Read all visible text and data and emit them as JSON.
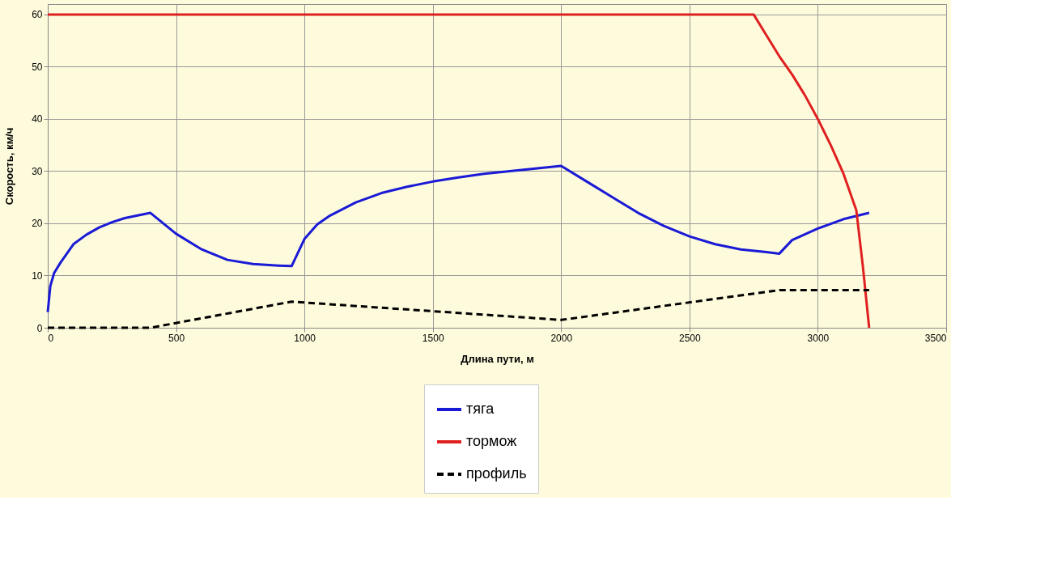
{
  "chart_data": {
    "type": "line",
    "xlabel": "Длина пути, м",
    "ylabel": "Скорость, км/ч",
    "xlim": [
      0,
      3500
    ],
    "xticks": [
      0,
      500,
      1000,
      1500,
      2000,
      2500,
      3000,
      3500
    ],
    "ylim": [
      0,
      62
    ],
    "yticks": [
      0,
      10,
      20,
      30,
      40,
      50,
      60
    ],
    "grid": true,
    "legend": "bottom",
    "series": [
      {
        "name": "тяга",
        "color": "#1a1ad6",
        "line_style": "solid",
        "x": [
          0,
          10,
          25,
          50,
          100,
          150,
          200,
          250,
          300,
          350,
          400,
          500,
          600,
          700,
          800,
          900,
          950,
          1000,
          1050,
          1100,
          1200,
          1300,
          1400,
          1500,
          1600,
          1700,
          1800,
          1900,
          2000,
          2100,
          2200,
          2300,
          2400,
          2500,
          2600,
          2700,
          2800,
          2850,
          2900,
          3000,
          3100,
          3200
        ],
        "values": [
          3,
          8,
          10.5,
          12.5,
          16,
          17.8,
          19.2,
          20.2,
          21,
          21.5,
          22,
          18,
          15,
          13,
          12.2,
          11.9,
          11.8,
          17,
          19.8,
          21.5,
          24,
          25.8,
          27,
          28,
          28.8,
          29.5,
          30,
          30.5,
          31,
          28,
          25,
          22,
          19.5,
          17.5,
          16,
          15,
          14.5,
          14.2,
          16.8,
          19,
          20.8,
          22
        ]
      },
      {
        "name": "тормож",
        "color": "#e02020",
        "line_style": "solid",
        "x": [
          0,
          2750,
          2800,
          2850,
          2900,
          2950,
          3000,
          3050,
          3100,
          3150,
          3175,
          3200
        ],
        "values": [
          60,
          60,
          56,
          52,
          48.5,
          44.5,
          40,
          35,
          29.5,
          22.5,
          12,
          0
        ]
      },
      {
        "name": "профиль",
        "color": "#000000",
        "line_style": "dashed",
        "x": [
          0,
          400,
          950,
          2000,
          2850,
          3200
        ],
        "values": [
          0,
          0,
          5,
          1.5,
          7.2,
          7.2
        ]
      }
    ]
  }
}
